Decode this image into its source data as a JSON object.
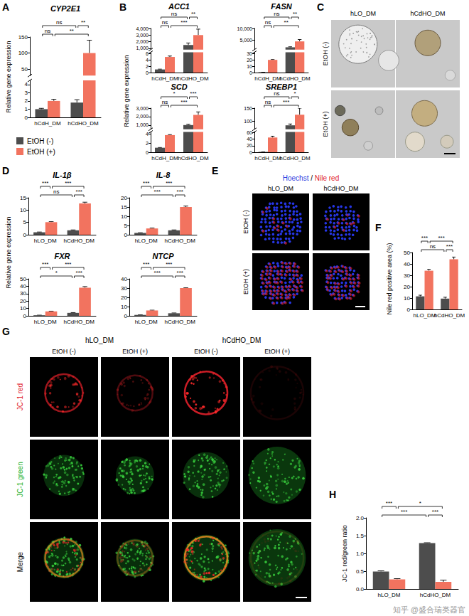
{
  "chart_data": [
    {
      "type": "bar",
      "title": "CYP2E1",
      "ylabel": "Relative gene expression",
      "categories": [
        "hCdH_DM",
        "hCdHO_DM"
      ],
      "series": [
        {
          "name": "EtOH (-)",
          "color": "#4d4d4d",
          "values": [
            1.0,
            1.8
          ],
          "errors": [
            0.1,
            0.35
          ]
        },
        {
          "name": "EtOH (+)",
          "color": "#f2735f",
          "values": [
            2.0,
            100
          ],
          "errors": [
            0.2,
            40
          ]
        }
      ],
      "ylim": [
        0,
        150
      ],
      "ybreak": [
        4.5,
        30
      ],
      "yticks": [
        0,
        1,
        2,
        3,
        4,
        50,
        100,
        150
      ],
      "legend": "bottom",
      "significance": [
        [
          {
            "bars": [
              0,
              2
            ],
            "label": "ns"
          },
          {
            "bars": [
              2,
              3
            ],
            "label": "**"
          }
        ],
        [
          {
            "bars": [
              0,
              1
            ],
            "label": "ns"
          },
          {
            "bars": [
              1,
              3
            ],
            "label": "**"
          }
        ]
      ]
    },
    {
      "type": "bar",
      "title": "ACC1",
      "ylabel": "Relative gene expression",
      "categories": [
        "hCdH_DM",
        "hCdHO_DM"
      ],
      "series": [
        {
          "name": "EtOH (-)",
          "color": "#4d4d4d",
          "values": [
            1.0,
            1500
          ],
          "errors": [
            0.1,
            300
          ]
        },
        {
          "name": "EtOH (+)",
          "color": "#f2735f",
          "values": [
            5,
            3000
          ],
          "errors": [
            0.3,
            900
          ]
        }
      ],
      "ylim": [
        0,
        4000
      ],
      "ybreak": [
        6.5,
        800
      ],
      "yticks": [
        0,
        2,
        4,
        6,
        {
          "value": 1000,
          "label": "1,000"
        },
        {
          "value": 2000,
          "label": "2,000"
        },
        {
          "value": 3000,
          "label": "3,000"
        },
        {
          "value": 4000,
          "label": "4,000"
        }
      ],
      "significance": [
        [
          {
            "bars": [
              0,
              2
            ],
            "label": "ns"
          },
          {
            "bars": [
              2,
              3
            ],
            "label": "**"
          }
        ],
        [
          {
            "bars": [
              0,
              1
            ],
            "label": "ns"
          },
          {
            "bars": [
              1,
              3
            ],
            "label": "***"
          }
        ]
      ]
    },
    {
      "type": "bar",
      "title": "FASN",
      "categories": [
        "hCdH_DM",
        "hCdHO_DM"
      ],
      "series": [
        {
          "name": "EtOH (-)",
          "color": "#4d4d4d",
          "values": [
            0.5,
            2000
          ],
          "errors": [
            0.05,
            200
          ]
        },
        {
          "name": "EtOH (+)",
          "color": "#f2735f",
          "values": [
            20,
            4500
          ],
          "errors": [
            0.5,
            800
          ]
        }
      ],
      "ylim": [
        0,
        10000
      ],
      "ybreak": [
        32,
        1000
      ],
      "yticks": [
        0,
        10,
        20,
        30,
        {
          "value": 5000,
          "label": "5,000"
        },
        {
          "value": 10000,
          "label": "10,000"
        }
      ],
      "significance": [
        [
          {
            "bars": [
              0,
              2
            ],
            "label": "ns"
          },
          {
            "bars": [
              2,
              3
            ],
            "label": "**"
          }
        ],
        [
          {
            "bars": [
              0,
              1
            ],
            "label": "ns"
          },
          {
            "bars": [
              1,
              3
            ],
            "label": "**"
          }
        ]
      ]
    },
    {
      "type": "bar",
      "title": "SCD",
      "categories": [
        "hCdH_DM",
        "hCdHO_DM"
      ],
      "series": [
        {
          "name": "EtOH (-)",
          "color": "#4d4d4d",
          "values": [
            1.0,
            1000
          ],
          "errors": [
            0.05,
            100
          ]
        },
        {
          "name": "EtOH (+)",
          "color": "#f2735f",
          "values": [
            3.8,
            2200
          ],
          "errors": [
            0.1,
            350
          ]
        }
      ],
      "ylim": [
        0,
        3000
      ],
      "ybreak": [
        4.5,
        500
      ],
      "yticks": [
        0,
        2,
        4,
        {
          "value": 1000,
          "label": "1,000"
        },
        {
          "value": 2000,
          "label": "2,000"
        },
        {
          "value": 3000,
          "label": "3,000"
        }
      ],
      "significance": [
        [
          {
            "bars": [
              0,
              2
            ],
            "label": "*"
          },
          {
            "bars": [
              2,
              3
            ],
            "label": "***"
          }
        ],
        [
          {
            "bars": [
              0,
              1
            ],
            "label": "ns"
          },
          {
            "bars": [
              1,
              3
            ],
            "label": "***"
          }
        ]
      ]
    },
    {
      "type": "bar",
      "title": "SREBP1",
      "categories": [
        "hCdH_DM",
        "hCdHO_DM"
      ],
      "series": [
        {
          "name": "EtOH (-)",
          "color": "#4d4d4d",
          "values": [
            1.0,
            85
          ],
          "errors": [
            0.2,
            5
          ]
        },
        {
          "name": "EtOH (+)",
          "color": "#f2735f",
          "values": [
            45,
            125
          ],
          "errors": [
            4,
            25
          ]
        }
      ],
      "ylim": [
        0,
        150
      ],
      "ybreak": [
        62,
        70
      ],
      "yticks": [
        0,
        20,
        40,
        60,
        100,
        150
      ],
      "significance": [
        [
          {
            "bars": [
              0,
              2
            ],
            "label": "ns"
          },
          {
            "bars": [
              2,
              3
            ],
            "label": "*"
          }
        ],
        [
          {
            "bars": [
              0,
              1
            ],
            "label": "ns"
          },
          {
            "bars": [
              1,
              3
            ],
            "label": "***"
          }
        ]
      ]
    },
    {
      "type": "bar",
      "title": "IL-1β",
      "ylabel": "Relative gene expression",
      "categories": [
        "hLO_DM",
        "hCdHO_DM"
      ],
      "series": [
        {
          "name": "EtOH (-)",
          "color": "#4d4d4d",
          "values": [
            1.0,
            1.8
          ],
          "errors": [
            0.1,
            0.15
          ]
        },
        {
          "name": "EtOH (+)",
          "color": "#f2735f",
          "values": [
            5.1,
            12.7
          ],
          "errors": [
            0.2,
            0.5
          ]
        }
      ],
      "ylim": [
        0,
        15
      ],
      "yticks": [
        0,
        5,
        10,
        15
      ],
      "significance": [
        [
          {
            "bars": [
              0,
              1
            ],
            "label": "***"
          },
          {
            "bars": [
              1,
              3
            ],
            "label": "***"
          }
        ],
        [
          {
            "bars": [
              0,
              2
            ],
            "label": "ns"
          },
          {
            "bars": [
              2,
              3
            ],
            "label": "***"
          }
        ]
      ]
    },
    {
      "type": "bar",
      "title": "IL-8",
      "categories": [
        "hLO_DM",
        "hCdHO_DM"
      ],
      "series": [
        {
          "name": "EtOH (-)",
          "color": "#4d4d4d",
          "values": [
            1.0,
            2.4
          ],
          "errors": [
            0.1,
            0.2
          ]
        },
        {
          "name": "EtOH (+)",
          "color": "#f2735f",
          "values": [
            3.4,
            15
          ],
          "errors": [
            0.2,
            0.5
          ]
        }
      ],
      "ylim": [
        0,
        20
      ],
      "yticks": [
        0,
        5,
        10,
        15,
        20
      ],
      "significance": [
        [
          {
            "bars": [
              0,
              1
            ],
            "label": "***"
          },
          {
            "bars": [
              1,
              3
            ],
            "label": "***"
          }
        ],
        [
          {
            "bars": [
              0,
              2
            ],
            "label": "***"
          },
          {
            "bars": [
              2,
              3
            ],
            "label": "***"
          }
        ]
      ]
    },
    {
      "type": "bar",
      "title": "FXR",
      "categories": [
        "hLO_DM",
        "hCdHO_DM"
      ],
      "series": [
        {
          "name": "EtOH (-)",
          "color": "#4d4d4d",
          "values": [
            0.8,
            4.0
          ],
          "errors": [
            0.1,
            0.4
          ]
        },
        {
          "name": "EtOH (+)",
          "color": "#f2735f",
          "values": [
            6.0,
            38
          ],
          "errors": [
            0.3,
            1.5
          ]
        }
      ],
      "ylim": [
        0,
        50
      ],
      "yticks": [
        0,
        10,
        20,
        30,
        40,
        50
      ],
      "significance": [
        [
          {
            "bars": [
              0,
              1
            ],
            "label": "***"
          },
          {
            "bars": [
              1,
              3
            ],
            "label": "***"
          }
        ],
        [
          {
            "bars": [
              0,
              2
            ],
            "label": "*"
          },
          {
            "bars": [
              2,
              3
            ],
            "label": "***"
          }
        ]
      ]
    },
    {
      "type": "bar",
      "title": "NTCP",
      "categories": [
        "hLO_DM",
        "hCdHO_DM"
      ],
      "series": [
        {
          "name": "EtOH (-)",
          "color": "#4d4d4d",
          "values": [
            1.0,
            2.8
          ],
          "errors": [
            0.1,
            0.3
          ]
        },
        {
          "name": "EtOH (+)",
          "color": "#f2735f",
          "values": [
            5.8,
            30
          ],
          "errors": [
            0.3,
            0.3
          ]
        }
      ],
      "ylim": [
        0,
        40
      ],
      "yticks": [
        0,
        10,
        20,
        30,
        40
      ],
      "significance": [
        [
          {
            "bars": [
              0,
              1
            ],
            "label": "***"
          },
          {
            "bars": [
              1,
              3
            ],
            "label": "***"
          }
        ],
        [
          {
            "bars": [
              0,
              2
            ],
            "label": "***"
          },
          {
            "bars": [
              2,
              3
            ],
            "label": "***"
          }
        ]
      ]
    },
    {
      "type": "bar",
      "ylabel": "Nile red positive area (%)",
      "categories": [
        "hLO_DM",
        "hCdHO_DM"
      ],
      "series": [
        {
          "name": "EtOH (-)",
          "color": "#4d4d4d",
          "values": [
            11.5,
            9.5
          ],
          "errors": [
            1.0,
            1.2
          ]
        },
        {
          "name": "EtOH (+)",
          "color": "#f2735f",
          "values": [
            34,
            44
          ],
          "errors": [
            1.2,
            2.0
          ]
        }
      ],
      "ylim": [
        0,
        50
      ],
      "yticks": [
        0,
        10,
        20,
        30,
        40,
        50
      ],
      "significance": [
        [
          {
            "bars": [
              0,
              1
            ],
            "label": "***"
          },
          {
            "bars": [
              1,
              3
            ],
            "label": "***"
          }
        ],
        [
          {
            "bars": [
              0,
              2
            ],
            "label": "ns"
          },
          {
            "bars": [
              2,
              3
            ],
            "label": "***"
          }
        ]
      ]
    },
    {
      "type": "bar",
      "ylabel": "JC-1 red/green ratio",
      "categories": [
        "hLO_DM",
        "hCdHO_DM"
      ],
      "series": [
        {
          "name": "EtOH (-)",
          "color": "#4d4d4d",
          "values": [
            0.49,
            1.29
          ],
          "errors": [
            0.02,
            0.01
          ]
        },
        {
          "name": "EtOH (+)",
          "color": "#f2735f",
          "values": [
            0.27,
            0.2
          ],
          "errors": [
            0.02,
            0.05
          ]
        }
      ],
      "ylim": [
        0,
        2
      ],
      "yticks": [
        {
          "value": 0,
          "label": "0.0"
        },
        {
          "value": 0.5,
          "label": "0.5"
        },
        {
          "value": 1,
          "label": "1.0"
        },
        {
          "value": 1.5,
          "label": "1.5"
        },
        {
          "value": 2,
          "label": "2.0"
        }
      ],
      "significance": [
        [
          {
            "bars": [
              0,
              1
            ],
            "label": "***"
          },
          {
            "bars": [
              1,
              3
            ],
            "label": "*"
          }
        ],
        [
          {
            "bars": [
              0,
              2
            ],
            "label": "***"
          },
          {
            "bars": [
              2,
              3
            ],
            "label": "***"
          }
        ]
      ]
    }
  ],
  "panel_labels": [
    "A",
    "B",
    "C",
    "D",
    "E",
    "F",
    "G",
    "H"
  ],
  "images": {
    "C": {
      "columns": [
        "hLO_DM",
        "hCdHO_DM"
      ],
      "rows": [
        "EtOH (-)",
        "EtOH (+)"
      ]
    },
    "E": {
      "title_parts": [
        {
          "text": "Hoechst",
          "color": "#2e3de0"
        },
        {
          "text": " / ",
          "color": "#000000"
        },
        {
          "text": "Nile red",
          "color": "#e0202a"
        }
      ],
      "columns": [
        "hLO_DM",
        "hCdHO_DM"
      ],
      "rows": [
        "EtOH (-)",
        "EtOH (+)"
      ]
    },
    "G": {
      "groups": [
        "hLO_DM",
        "hCdHO_DM"
      ],
      "columns": [
        "EtOH (-)",
        "EtOH (+)"
      ],
      "rows": [
        {
          "text": "JC-1 red",
          "color": "#e0202a"
        },
        {
          "text": "JC-1 green",
          "color": "#22b02a"
        },
        {
          "text": "Merge",
          "color": "#000000"
        }
      ]
    }
  },
  "watermark": "知乎 @盛合瑞类器官"
}
